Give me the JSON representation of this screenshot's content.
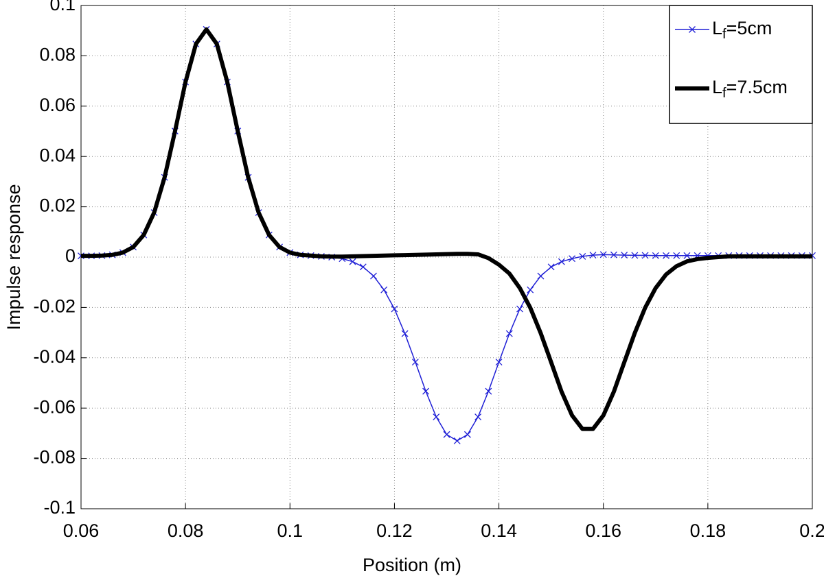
{
  "chart_data": {
    "type": "line",
    "xlabel": "Position (m)",
    "ylabel": "Impulse response",
    "x": [
      0.06,
      0.062,
      0.064,
      0.066,
      0.068,
      0.07,
      0.072,
      0.074,
      0.076,
      0.078,
      0.08,
      0.082,
      0.084,
      0.086,
      0.088,
      0.09,
      0.092,
      0.094,
      0.096,
      0.098,
      0.1,
      0.102,
      0.104,
      0.106,
      0.108,
      0.11,
      0.112,
      0.114,
      0.116,
      0.118,
      0.12,
      0.122,
      0.124,
      0.126,
      0.128,
      0.13,
      0.132,
      0.134,
      0.136,
      0.138,
      0.14,
      0.142,
      0.144,
      0.146,
      0.148,
      0.15,
      0.152,
      0.154,
      0.156,
      0.158,
      0.16,
      0.162,
      0.164,
      0.166,
      0.168,
      0.17,
      0.172,
      0.174,
      0.176,
      0.178,
      0.18,
      0.182,
      0.184,
      0.186,
      0.188,
      0.19,
      0.192,
      0.194,
      0.196,
      0.198,
      0.2
    ],
    "series": [
      {
        "name": "Lf=5cm",
        "color": "#1f1fd6",
        "marker": "x",
        "values": [
          0.0005,
          0.0005,
          0.0006,
          0.0009,
          0.0018,
          0.004,
          0.0088,
          0.0177,
          0.0317,
          0.0501,
          0.0696,
          0.0847,
          0.0905,
          0.0847,
          0.0696,
          0.0501,
          0.0317,
          0.0177,
          0.0088,
          0.004,
          0.0018,
          0.0009,
          0.0006,
          0.0003,
          0.0,
          -0.0006,
          -0.0018,
          -0.0039,
          -0.0075,
          -0.013,
          -0.0206,
          -0.0304,
          -0.0417,
          -0.0533,
          -0.0635,
          -0.0705,
          -0.073,
          -0.0705,
          -0.0635,
          -0.0533,
          -0.0417,
          -0.0304,
          -0.0206,
          -0.013,
          -0.0075,
          -0.0039,
          -0.0018,
          -0.0006,
          0.0003,
          0.0008,
          0.001,
          0.0009,
          0.0008,
          0.0007,
          0.0007,
          0.0006,
          0.0006,
          0.0006,
          0.0006,
          0.0006,
          0.0006,
          0.0006,
          0.0006,
          0.0006,
          0.0006,
          0.0006,
          0.0006,
          0.0006,
          0.0006,
          0.0006,
          0.0006
        ]
      },
      {
        "name": "Lf=7.5cm",
        "color": "#000000",
        "marker": null,
        "values": [
          0.0005,
          0.0005,
          0.0006,
          0.0009,
          0.0018,
          0.004,
          0.0088,
          0.0177,
          0.0317,
          0.0501,
          0.0696,
          0.0847,
          0.0905,
          0.0847,
          0.0696,
          0.0501,
          0.0317,
          0.0177,
          0.0088,
          0.004,
          0.0018,
          0.0009,
          0.0006,
          0.0003,
          0.0002,
          0.0002,
          0.0003,
          0.0004,
          0.0005,
          0.0006,
          0.0007,
          0.0008,
          0.0009,
          0.001,
          0.0011,
          0.0012,
          0.0013,
          0.0013,
          0.0011,
          -0.0004,
          -0.003,
          -0.0065,
          -0.0123,
          -0.0201,
          -0.0302,
          -0.0418,
          -0.0535,
          -0.0629,
          -0.0683,
          -0.0683,
          -0.0629,
          -0.0535,
          -0.0418,
          -0.0302,
          -0.0201,
          -0.0123,
          -0.0069,
          -0.0036,
          -0.0017,
          -0.0008,
          -0.0003,
          0.0,
          0.0003,
          0.0003,
          0.0003,
          0.0003,
          0.0003,
          0.0003,
          0.0003,
          0.0003,
          0.0003
        ]
      }
    ],
    "xlim": [
      0.06,
      0.2
    ],
    "xticks": [
      0.06,
      0.08,
      0.1,
      0.12,
      0.14,
      0.16,
      0.18,
      0.2
    ],
    "ylim": [
      -0.1,
      0.1
    ],
    "yticks": [
      -0.1,
      -0.08,
      -0.06,
      -0.04,
      -0.02,
      0,
      0.02,
      0.04,
      0.06,
      0.08,
      0.1
    ],
    "grid": true,
    "legend": "upper right"
  }
}
